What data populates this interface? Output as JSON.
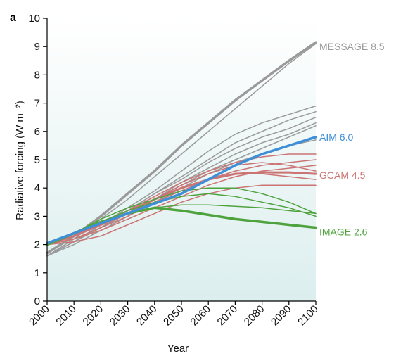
{
  "panel_label": "a",
  "colors": {
    "message": "#9a9a9a",
    "aim": "#3f8fd8",
    "gcam": "#cc7474",
    "image": "#4fa33e",
    "background_top": "#ffffff",
    "background_bottom": "#dceeee"
  },
  "chart_data": {
    "type": "line",
    "xlabel": "Year",
    "ylabel": "Radiative forcing (W m⁻²)",
    "xlim": [
      2000,
      2100
    ],
    "ylim": [
      0,
      10
    ],
    "x_ticks": [
      "2000",
      "2010",
      "2020",
      "2030",
      "2040",
      "2050",
      "2060",
      "2070",
      "2080",
      "2090",
      "2100"
    ],
    "y_ticks": [
      "0",
      "1",
      "2",
      "3",
      "4",
      "5",
      "6",
      "7",
      "8",
      "9",
      "10"
    ],
    "x": [
      2000,
      2010,
      2020,
      2030,
      2040,
      2050,
      2060,
      2070,
      2080,
      2090,
      2100
    ],
    "series_labels": [
      {
        "label": "MESSAGE 8.5",
        "group": "message",
        "y": 9.0
      },
      {
        "label": "AIM 6.0",
        "group": "aim",
        "y": 5.8
      },
      {
        "label": "GCAM 4.5",
        "group": "gcam",
        "y": 4.45
      },
      {
        "label": "IMAGE 2.6",
        "group": "image",
        "y": 2.45
      }
    ],
    "series": [
      {
        "group": "message",
        "width": 1.5,
        "values": [
          1.6,
          2.2,
          2.9,
          3.6,
          4.4,
          5.2,
          6.0,
          6.8,
          7.6,
          8.4,
          9.1
        ]
      },
      {
        "group": "message",
        "width": 1.5,
        "values": [
          1.6,
          2.1,
          2.7,
          3.3,
          3.9,
          4.6,
          5.3,
          5.9,
          6.3,
          6.6,
          6.9
        ]
      },
      {
        "group": "message",
        "width": 1.5,
        "values": [
          1.6,
          2.1,
          2.6,
          3.2,
          3.8,
          4.4,
          5.0,
          5.6,
          6.0,
          6.4,
          6.7
        ]
      },
      {
        "group": "message",
        "width": 1.5,
        "values": [
          1.6,
          2.1,
          2.6,
          3.2,
          3.8,
          4.3,
          4.9,
          5.4,
          5.8,
          6.1,
          6.5
        ]
      },
      {
        "group": "message",
        "width": 1.5,
        "values": [
          1.6,
          2.1,
          2.6,
          3.1,
          3.6,
          4.2,
          4.7,
          5.2,
          5.6,
          5.9,
          6.3
        ]
      },
      {
        "group": "message",
        "width": 1.5,
        "values": [
          1.6,
          2.1,
          2.6,
          3.1,
          3.6,
          4.1,
          4.6,
          5.0,
          5.4,
          5.8,
          6.2
        ]
      },
      {
        "group": "message",
        "width": 1.5,
        "values": [
          1.6,
          2.0,
          2.5,
          3.0,
          3.5,
          4.0,
          4.5,
          4.9,
          5.2,
          5.5,
          5.7
        ]
      },
      {
        "group": "message",
        "width": 3.5,
        "values": [
          1.7,
          2.3,
          3.0,
          3.8,
          4.6,
          5.5,
          6.3,
          7.1,
          7.8,
          8.5,
          9.15
        ]
      },
      {
        "group": "gcam",
        "width": 1.5,
        "values": [
          2.0,
          2.3,
          2.8,
          3.2,
          3.7,
          4.2,
          4.6,
          4.9,
          5.1,
          5.2,
          5.2
        ]
      },
      {
        "group": "gcam",
        "width": 1.5,
        "values": [
          2.0,
          2.2,
          2.6,
          3.0,
          3.5,
          3.9,
          4.3,
          4.6,
          4.8,
          4.9,
          5.0
        ]
      },
      {
        "group": "gcam",
        "width": 1.5,
        "values": [
          2.0,
          2.3,
          2.7,
          3.1,
          3.6,
          4.1,
          4.5,
          4.8,
          4.9,
          4.8,
          4.6
        ]
      },
      {
        "group": "gcam",
        "width": 1.5,
        "values": [
          2.0,
          2.2,
          2.5,
          2.9,
          3.3,
          3.7,
          4.1,
          4.4,
          4.6,
          4.7,
          4.8
        ]
      },
      {
        "group": "gcam",
        "width": 1.5,
        "values": [
          2.0,
          2.1,
          2.3,
          2.7,
          3.1,
          3.5,
          3.8,
          4.0,
          4.1,
          4.1,
          4.1
        ]
      },
      {
        "group": "gcam",
        "width": 1.5,
        "values": [
          2.0,
          2.4,
          2.8,
          3.2,
          3.6,
          4.0,
          4.3,
          4.5,
          4.5,
          4.4,
          4.3
        ]
      },
      {
        "group": "gcam",
        "width": 3.0,
        "values": [
          2.0,
          2.3,
          2.7,
          3.1,
          3.6,
          4.0,
          4.3,
          4.5,
          4.55,
          4.55,
          4.5
        ]
      },
      {
        "group": "image",
        "width": 1.5,
        "values": [
          2.0,
          2.4,
          2.9,
          3.3,
          3.6,
          3.9,
          4.0,
          4.0,
          3.8,
          3.5,
          3.1
        ]
      },
      {
        "group": "image",
        "width": 1.5,
        "values": [
          2.0,
          2.4,
          2.8,
          3.2,
          3.5,
          3.7,
          3.8,
          3.7,
          3.5,
          3.3,
          3.0
        ]
      },
      {
        "group": "image",
        "width": 1.5,
        "values": [
          2.0,
          2.4,
          2.8,
          3.1,
          3.3,
          3.4,
          3.4,
          3.35,
          3.3,
          3.2,
          3.1
        ]
      },
      {
        "group": "image",
        "width": 3.5,
        "values": [
          2.0,
          2.4,
          2.8,
          3.1,
          3.3,
          3.2,
          3.05,
          2.9,
          2.8,
          2.7,
          2.6
        ]
      },
      {
        "group": "aim",
        "width": 3.5,
        "values": [
          2.05,
          2.4,
          2.75,
          3.1,
          3.45,
          3.8,
          4.3,
          4.8,
          5.2,
          5.5,
          5.8
        ]
      }
    ]
  }
}
